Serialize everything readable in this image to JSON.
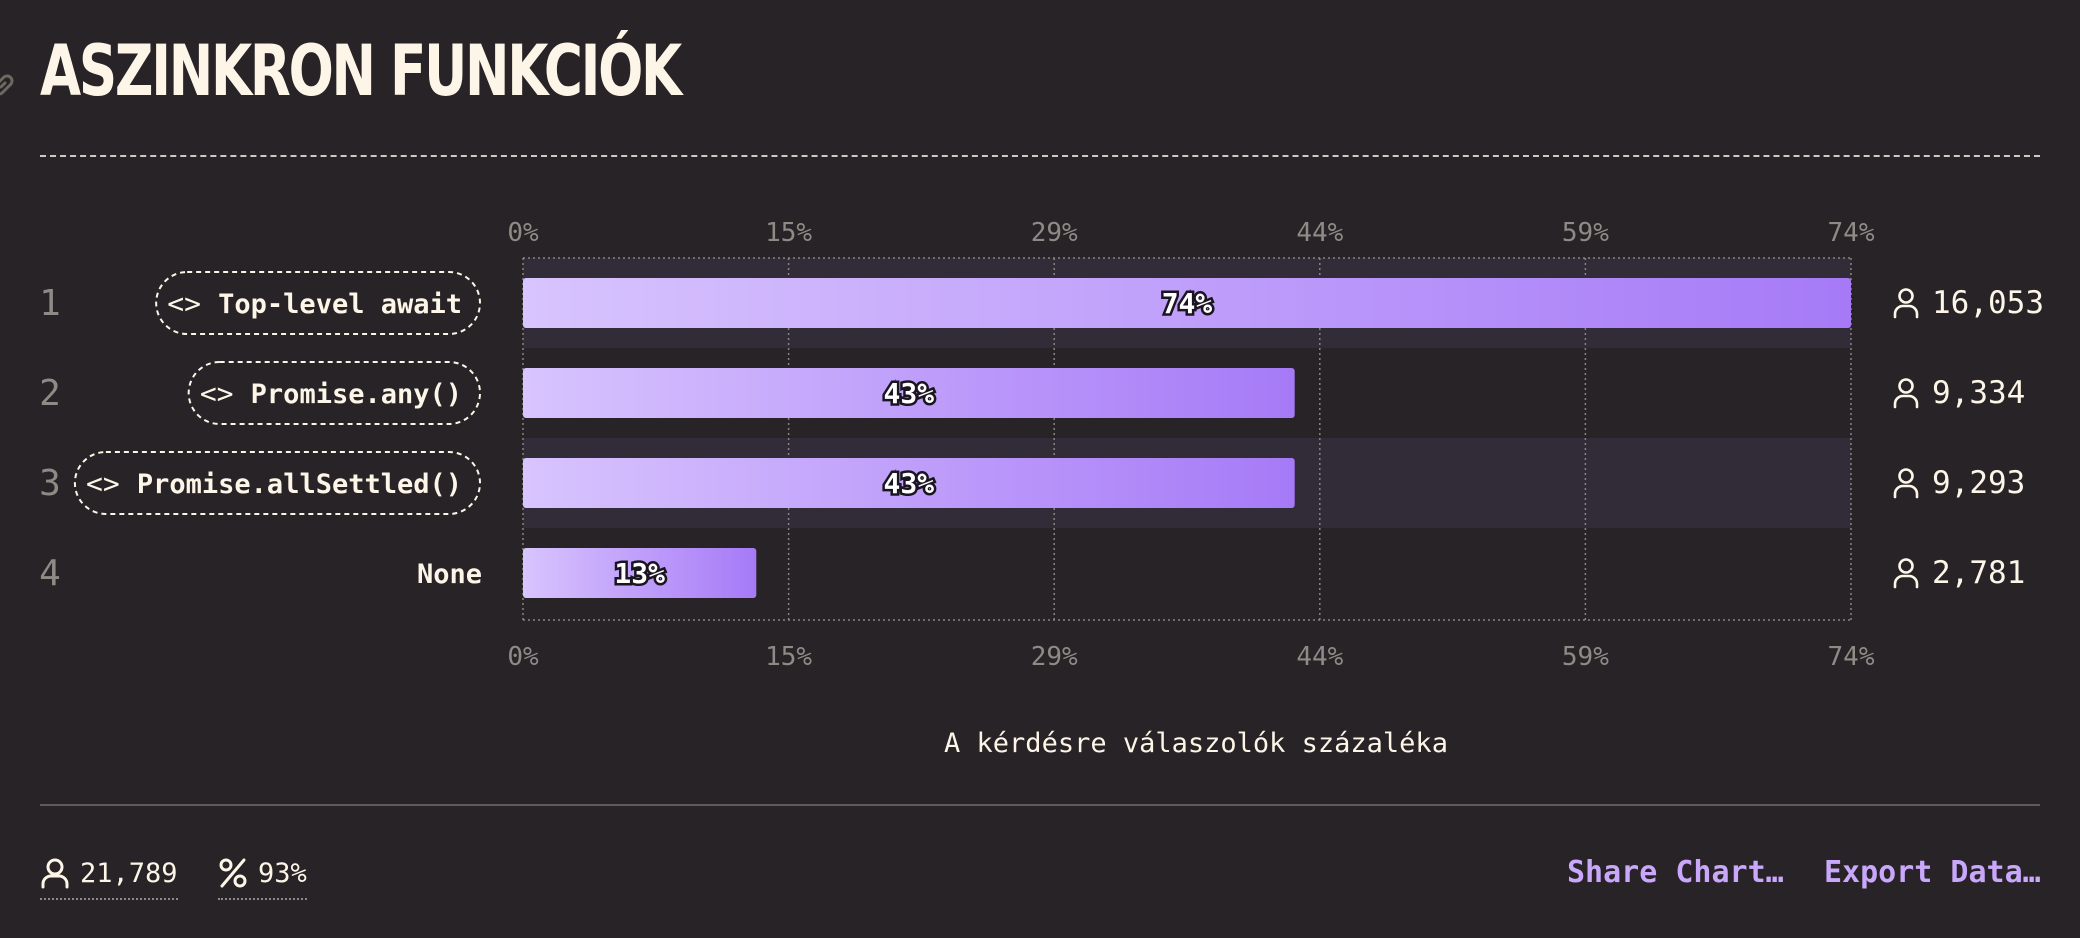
{
  "page": {
    "title": "ASZINKRON FUNKCIÓK"
  },
  "chart_data": {
    "type": "bar",
    "orientation": "horizontal",
    "title": "ASZINKRON FUNKCIÓK",
    "xlabel": "A kérdésre válaszolók százaléka",
    "xlim": [
      0,
      74
    ],
    "x_ticks": [
      "0%",
      "15%",
      "29%",
      "44%",
      "59%",
      "74%"
    ],
    "grid": true,
    "categories": [
      "Top-level await",
      "Promise.any()",
      "Promise.allSettled()",
      "None"
    ],
    "ranks": [
      "1",
      "2",
      "3",
      "4"
    ],
    "is_code": [
      true,
      true,
      true,
      false
    ],
    "values": [
      74,
      43,
      43,
      13
    ],
    "value_labels": [
      "74%",
      "43%",
      "43%",
      "13%"
    ],
    "counts": [
      "16,053",
      "9,334",
      "9,293",
      "2,781"
    ],
    "colors": {
      "bar_start": "#d8c4fe",
      "bar_end": "#a67af7",
      "stripe": "#322c38",
      "label": "#fdf6e8",
      "muted": "#8f8a86"
    }
  },
  "footer": {
    "respondents": "21,789",
    "percent": "93%",
    "share_label": "Share Chart…",
    "export_label": "Export Data…"
  },
  "icons": {
    "respondent": "person-icon",
    "percent": "percent-icon",
    "link": "link-icon",
    "code": "code-brackets-icon"
  }
}
